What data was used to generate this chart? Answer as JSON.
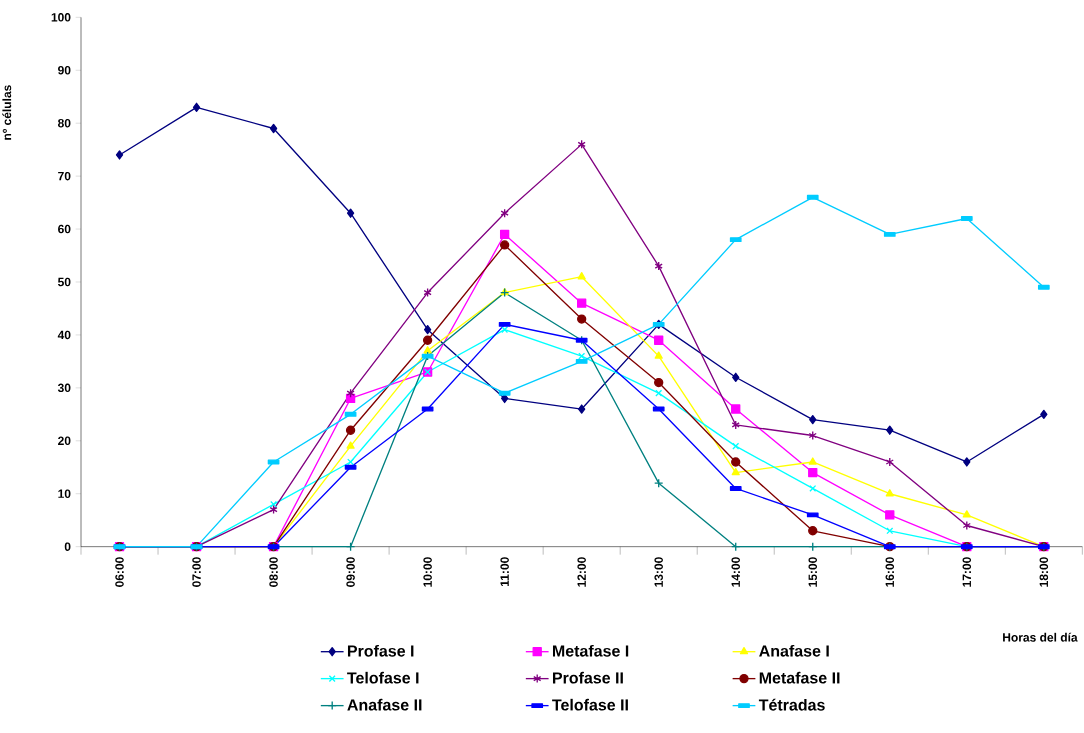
{
  "chart_data": {
    "type": "line",
    "xlabel": "Horas del día",
    "ylabel": "nº células",
    "categories": [
      "06:00",
      "07:00",
      "08:00",
      "09:00",
      "10:00",
      "11:00",
      "12:00",
      "13:00",
      "14:00",
      "15:00",
      "16:00",
      "17:00",
      "18:00"
    ],
    "ylim": [
      0,
      100
    ],
    "yticks": [
      0,
      10,
      20,
      30,
      40,
      50,
      60,
      70,
      80,
      90,
      100
    ],
    "legend": "bottom",
    "line_style": "solid",
    "series": [
      {
        "name": "Profase I",
        "color": "#000080",
        "marker": "diamond",
        "values": [
          74,
          83,
          79,
          63,
          41,
          28,
          26,
          42,
          32,
          24,
          22,
          16,
          25
        ]
      },
      {
        "name": "Metafase I",
        "color": "#ff00ff",
        "marker": "square",
        "values": [
          0,
          0,
          0,
          28,
          33,
          59,
          46,
          39,
          26,
          14,
          6,
          0,
          0
        ]
      },
      {
        "name": "Anafase I",
        "color": "#ffff00",
        "marker": "triangle",
        "values": [
          0,
          0,
          0,
          19,
          37,
          48,
          51,
          36,
          14,
          16,
          10,
          6,
          0
        ]
      },
      {
        "name": "Telofase I",
        "color": "#00ffff",
        "marker": "cross",
        "values": [
          0,
          0,
          8,
          16,
          33,
          41,
          36,
          29,
          19,
          11,
          3,
          0,
          0
        ]
      },
      {
        "name": "Profase II",
        "color": "#800080",
        "marker": "cross",
        "values": [
          0,
          0,
          7,
          29,
          48,
          63,
          76,
          53,
          23,
          21,
          16,
          4,
          0
        ]
      },
      {
        "name": "Metafase II",
        "color": "#800000",
        "marker": "circle",
        "values": [
          0,
          0,
          0,
          22,
          39,
          57,
          43,
          31,
          16,
          3,
          0,
          0,
          0
        ]
      },
      {
        "name": "Anafase II",
        "color": "#008080",
        "marker": "plus",
        "values": [
          0,
          0,
          0,
          0,
          36,
          48,
          39,
          12,
          0,
          0,
          0,
          0,
          0
        ]
      },
      {
        "name": "Telofase II",
        "color": "#0000ff",
        "marker": "square",
        "values": [
          0,
          0,
          0,
          15,
          26,
          42,
          39,
          26,
          11,
          6,
          0,
          0,
          0
        ]
      },
      {
        "name": "Tétradas",
        "color": "#00ccff",
        "marker": "square",
        "values": [
          0,
          0,
          16,
          25,
          36,
          29,
          35,
          42,
          58,
          66,
          59,
          62,
          49
        ]
      }
    ]
  }
}
